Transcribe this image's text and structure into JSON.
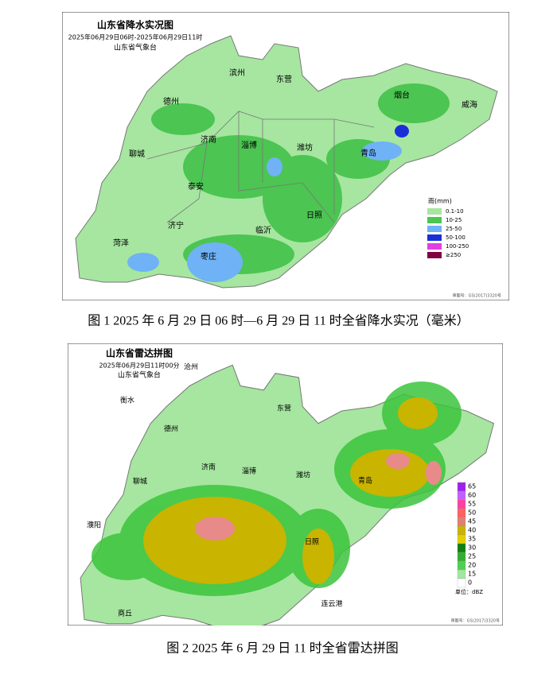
{
  "figure1": {
    "title": "山东省降水实况图",
    "time": "2025年06月29日06时-2025年06月29日11时",
    "issuer": "山东省气象台",
    "cities": [
      "滨州",
      "东营",
      "德州",
      "烟台",
      "威海",
      "济南",
      "淄博",
      "潍坊",
      "青岛",
      "聊城",
      "泰安",
      "日照",
      "济宁",
      "临沂",
      "菏泽",
      "枣庄"
    ],
    "legend": {
      "title": "雨(mm)",
      "items": [
        "0.1-10",
        "10-25",
        "25-50",
        "50-100",
        "100-250",
        "≥250"
      ]
    },
    "approval": "审图号：GS(2017)3320号",
    "caption": "图 1 2025 年 6 月 29 日 06 时—6 月 29 日 11 时全省降水实况（毫米）"
  },
  "figure2": {
    "title": "山东省雷达拼图",
    "time": "2025年06月29日11时00分",
    "issuer": "山东省气象台",
    "cities": [
      "沧州",
      "衡水",
      "德州",
      "东营",
      "济南",
      "淄博",
      "潍坊",
      "聊城",
      "青岛",
      "濮阳",
      "日照",
      "连云港",
      "商丘"
    ],
    "legend": {
      "values": [
        65,
        60,
        55,
        50,
        45,
        40,
        35,
        30,
        25,
        20,
        15,
        0
      ],
      "unit": "单位：dBZ"
    },
    "approval": "审图号：GS(2017)3320号",
    "caption": "图 2 2025 年 6 月 29 日 11 时全省雷达拼图"
  }
}
